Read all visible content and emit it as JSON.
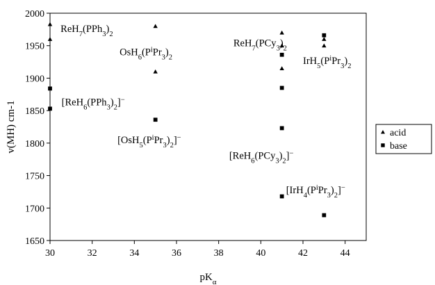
{
  "chart_data": {
    "type": "scatter",
    "title": "",
    "xlabel": "pKα",
    "ylabel": "v(MH) cm-1",
    "xlim": [
      30,
      45
    ],
    "ylim": [
      1650,
      2000
    ],
    "xticks": [
      30,
      32,
      34,
      36,
      38,
      40,
      42,
      44
    ],
    "yticks": [
      1650,
      1700,
      1750,
      1800,
      1850,
      1900,
      1950,
      2000
    ],
    "grid": false,
    "legend": "right",
    "series": [
      {
        "name": "acid",
        "marker": "triangle",
        "color": "#000000",
        "points": [
          [
            30,
            1983
          ],
          [
            30,
            1960
          ],
          [
            35,
            1980
          ],
          [
            35,
            1910
          ],
          [
            41,
            1970
          ],
          [
            41,
            1950
          ],
          [
            41,
            1915
          ],
          [
            43,
            1960
          ],
          [
            43,
            1950
          ]
        ]
      },
      {
        "name": "base",
        "marker": "square",
        "color": "#000000",
        "points": [
          [
            30,
            1884
          ],
          [
            30,
            1853
          ],
          [
            35,
            1836
          ],
          [
            41,
            1936
          ],
          [
            41,
            1885
          ],
          [
            41,
            1823
          ],
          [
            41,
            1718
          ],
          [
            43,
            1966
          ],
          [
            43,
            1689
          ]
        ]
      }
    ],
    "annotations": [
      {
        "id": "reh7-pph3",
        "x": 30.5,
        "y": 1971,
        "anchor": "start",
        "parts": [
          {
            "t": "ReH"
          },
          {
            "t": "7",
            "s": "sub"
          },
          {
            "t": "(PPh"
          },
          {
            "t": "3",
            "s": "sub"
          },
          {
            "t": ")"
          },
          {
            "t": "2",
            "s": "sub"
          }
        ]
      },
      {
        "id": "osh6",
        "x": 33.3,
        "y": 1935,
        "anchor": "start",
        "parts": [
          {
            "t": "OsH"
          },
          {
            "t": "6",
            "s": "sub"
          },
          {
            "t": "(P"
          },
          {
            "t": "i",
            "s": "sup"
          },
          {
            "t": "Pr"
          },
          {
            "t": "3",
            "s": "sub"
          },
          {
            "t": ")"
          },
          {
            "t": "2",
            "s": "sub"
          }
        ]
      },
      {
        "id": "reh7-pcy3",
        "x": 38.7,
        "y": 1949,
        "anchor": "start",
        "parts": [
          {
            "t": "ReH"
          },
          {
            "t": "7",
            "s": "sub"
          },
          {
            "t": "(PCy"
          },
          {
            "t": "3",
            "s": "sub"
          },
          {
            "t": ")"
          },
          {
            "t": "2",
            "s": "sub"
          }
        ]
      },
      {
        "id": "irh5",
        "x": 42.0,
        "y": 1922,
        "anchor": "start",
        "parts": [
          {
            "t": "IrH"
          },
          {
            "t": "5",
            "s": "sub"
          },
          {
            "t": "(P"
          },
          {
            "t": "i",
            "s": "sup"
          },
          {
            "t": "Pr"
          },
          {
            "t": "3",
            "s": "sub"
          },
          {
            "t": ")"
          },
          {
            "t": "2",
            "s": "sub"
          }
        ]
      },
      {
        "id": "reh6-pph3",
        "x": 30.55,
        "y": 1858,
        "anchor": "start",
        "parts": [
          {
            "t": "[ReH"
          },
          {
            "t": "6",
            "s": "sub"
          },
          {
            "t": "(PPh"
          },
          {
            "t": "3",
            "s": "sub"
          },
          {
            "t": ")"
          },
          {
            "t": "2",
            "s": "sub"
          },
          {
            "t": "]"
          },
          {
            "t": "−",
            "s": "sup"
          }
        ]
      },
      {
        "id": "osh5",
        "x": 33.2,
        "y": 1800,
        "anchor": "start",
        "parts": [
          {
            "t": "[OsH"
          },
          {
            "t": "5",
            "s": "sub"
          },
          {
            "t": "(P"
          },
          {
            "t": "i",
            "s": "sup"
          },
          {
            "t": "Pr"
          },
          {
            "t": "3",
            "s": "sub"
          },
          {
            "t": ")"
          },
          {
            "t": "2",
            "s": "sub"
          },
          {
            "t": "]"
          },
          {
            "t": "−",
            "s": "sup"
          }
        ]
      },
      {
        "id": "reh6-pcy3",
        "x": 38.5,
        "y": 1776,
        "anchor": "start",
        "parts": [
          {
            "t": "[ReH"
          },
          {
            "t": "6",
            "s": "sub"
          },
          {
            "t": "(PCy"
          },
          {
            "t": "3",
            "s": "sub"
          },
          {
            "t": ")"
          },
          {
            "t": "2",
            "s": "sub"
          },
          {
            "t": "]"
          },
          {
            "t": "−",
            "s": "sup"
          }
        ]
      },
      {
        "id": "irh4",
        "x": 41.2,
        "y": 1723,
        "anchor": "start",
        "parts": [
          {
            "t": "[IrH"
          },
          {
            "t": "4",
            "s": "sub"
          },
          {
            "t": "(P"
          },
          {
            "t": "i",
            "s": "sup"
          },
          {
            "t": "Pr"
          },
          {
            "t": "3",
            "s": "sub"
          },
          {
            "t": ")"
          },
          {
            "t": "2",
            "s": "sub"
          },
          {
            "t": "]"
          },
          {
            "t": "−",
            "s": "sup"
          }
        ]
      }
    ]
  }
}
